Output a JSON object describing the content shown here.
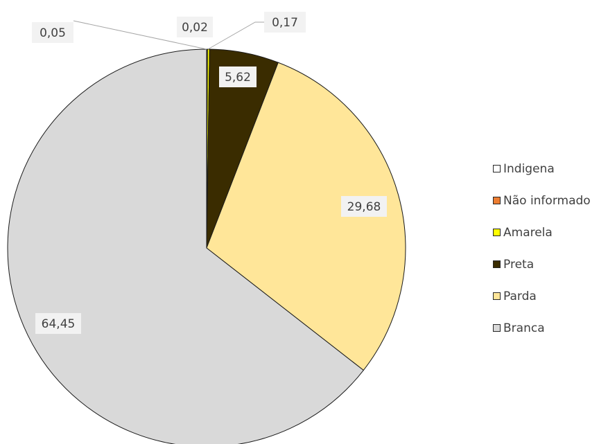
{
  "chart_data": {
    "type": "pie",
    "series": [
      {
        "name": "Indigena",
        "value": 0.02,
        "label": "0,02",
        "color": "#ffffff"
      },
      {
        "name": "Não informado",
        "value": 0.05,
        "label": "0,05",
        "color": "#ed7d31"
      },
      {
        "name": "Amarela",
        "value": 0.17,
        "label": "0,17",
        "color": "#ffff00"
      },
      {
        "name": "Preta",
        "value": 5.62,
        "label": "5,62",
        "color": "#3a2c00"
      },
      {
        "name": "Parda",
        "value": 29.68,
        "label": "29,68",
        "color": "#ffe699"
      },
      {
        "name": "Branca",
        "value": 64.45,
        "label": "64,45",
        "color": "#d9d9d9"
      }
    ],
    "legend_position": "right"
  }
}
